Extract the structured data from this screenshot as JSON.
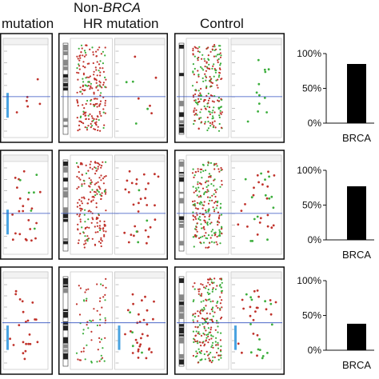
{
  "headers": {
    "col1": "mutation",
    "col2_line1_prefix": "Non-",
    "col2_line1_italic": "BRCA",
    "col2_line2": "HR mutation",
    "col3": "Control"
  },
  "colors": {
    "bar": "#000000",
    "panel_border": "#111111",
    "red_points": "#c0322b",
    "green_points": "#3cae3c",
    "blue_line": "#3050c0",
    "blue_marker": "#4aa3e0"
  },
  "chart_data": [
    {
      "type": "bar",
      "categories": [
        "BRCA"
      ],
      "values": [
        85
      ],
      "ylim": [
        0,
        100
      ],
      "yticks": [
        "0%",
        "50%",
        "100%"
      ],
      "title": "",
      "xlabel": "",
      "ylabel": ""
    },
    {
      "type": "bar",
      "categories": [
        "BRCA"
      ],
      "values": [
        77
      ],
      "ylim": [
        0,
        100
      ],
      "yticks": [
        "0%",
        "50%",
        "100%"
      ],
      "title": "",
      "xlabel": "",
      "ylabel": ""
    },
    {
      "type": "bar",
      "categories": [
        "BRCA"
      ],
      "values": [
        38
      ],
      "ylim": [
        0,
        100
      ],
      "yticks": [
        "0%",
        "50%",
        "100%"
      ],
      "title": "",
      "xlabel": "",
      "ylabel": ""
    }
  ]
}
